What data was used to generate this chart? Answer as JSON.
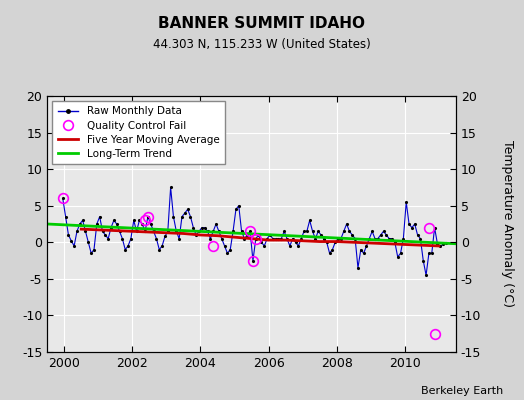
{
  "title": "BANNER SUMMIT IDAHO",
  "subtitle": "44.303 N, 115.233 W (United States)",
  "ylabel": "Temperature Anomaly (°C)",
  "credit": "Berkeley Earth",
  "xlim": [
    1999.5,
    2011.5
  ],
  "ylim": [
    -15,
    20
  ],
  "yticks": [
    -15,
    -10,
    -5,
    0,
    5,
    10,
    15,
    20
  ],
  "xticks": [
    2000,
    2002,
    2004,
    2006,
    2008,
    2010
  ],
  "fig_bg": "#d4d4d4",
  "plot_bg": "#e8e8e8",
  "raw_color": "#0000cc",
  "moving_avg_color": "#cc0000",
  "trend_color": "#00cc00",
  "qc_color": "#ff00ff",
  "raw_data_x": [
    1999.958,
    2000.042,
    2000.125,
    2000.208,
    2000.292,
    2000.375,
    2000.458,
    2000.542,
    2000.625,
    2000.708,
    2000.792,
    2000.875,
    2000.958,
    2001.042,
    2001.125,
    2001.208,
    2001.292,
    2001.375,
    2001.458,
    2001.542,
    2001.625,
    2001.708,
    2001.792,
    2001.875,
    2001.958,
    2002.042,
    2002.125,
    2002.208,
    2002.292,
    2002.375,
    2002.458,
    2002.542,
    2002.625,
    2002.708,
    2002.792,
    2002.875,
    2002.958,
    2003.042,
    2003.125,
    2003.208,
    2003.292,
    2003.375,
    2003.458,
    2003.542,
    2003.625,
    2003.708,
    2003.792,
    2003.875,
    2003.958,
    2004.042,
    2004.125,
    2004.208,
    2004.292,
    2004.375,
    2004.458,
    2004.542,
    2004.625,
    2004.708,
    2004.792,
    2004.875,
    2004.958,
    2005.042,
    2005.125,
    2005.208,
    2005.292,
    2005.375,
    2005.458,
    2005.542,
    2005.625,
    2005.708,
    2005.792,
    2005.875,
    2005.958,
    2006.042,
    2006.125,
    2006.208,
    2006.292,
    2006.375,
    2006.458,
    2006.542,
    2006.625,
    2006.708,
    2006.792,
    2006.875,
    2006.958,
    2007.042,
    2007.125,
    2007.208,
    2007.292,
    2007.375,
    2007.458,
    2007.542,
    2007.625,
    2007.708,
    2007.792,
    2007.875,
    2007.958,
    2008.042,
    2008.125,
    2008.208,
    2008.292,
    2008.375,
    2008.458,
    2008.542,
    2008.625,
    2008.708,
    2008.792,
    2008.875,
    2008.958,
    2009.042,
    2009.125,
    2009.208,
    2009.292,
    2009.375,
    2009.458,
    2009.542,
    2009.625,
    2009.708,
    2009.792,
    2009.875,
    2009.958,
    2010.042,
    2010.125,
    2010.208,
    2010.292,
    2010.375,
    2010.458,
    2010.542,
    2010.625,
    2010.708,
    2010.792,
    2010.875,
    2010.958,
    2011.042,
    2011.125,
    2011.208
  ],
  "raw_data_y": [
    6.0,
    3.5,
    1.0,
    0.2,
    -0.5,
    1.5,
    2.5,
    3.0,
    1.5,
    0.0,
    -1.5,
    -1.0,
    2.5,
    3.5,
    1.5,
    1.0,
    0.5,
    2.0,
    3.0,
    2.5,
    1.5,
    0.5,
    -1.0,
    -0.5,
    0.5,
    3.0,
    1.5,
    3.0,
    2.5,
    1.5,
    3.5,
    2.5,
    1.5,
    0.5,
    -1.0,
    -0.5,
    0.8,
    1.5,
    7.5,
    3.5,
    1.5,
    0.5,
    3.5,
    4.0,
    4.5,
    3.5,
    2.0,
    1.0,
    1.5,
    2.0,
    2.0,
    1.5,
    0.5,
    1.5,
    2.5,
    1.5,
    0.5,
    -0.5,
    -1.5,
    -1.0,
    1.5,
    4.5,
    5.0,
    1.5,
    0.5,
    1.0,
    1.5,
    -2.5,
    0.5,
    1.0,
    0.0,
    -0.5,
    0.5,
    1.0,
    0.5,
    0.5,
    0.5,
    0.5,
    1.5,
    0.5,
    -0.5,
    0.5,
    0.0,
    -0.5,
    0.5,
    1.5,
    1.5,
    3.0,
    1.5,
    0.5,
    1.5,
    1.0,
    0.5,
    0.0,
    -1.5,
    -1.0,
    0.0,
    0.5,
    0.5,
    1.5,
    2.5,
    1.5,
    1.0,
    0.5,
    -3.5,
    -1.0,
    -1.5,
    -0.5,
    0.5,
    1.5,
    0.5,
    0.5,
    1.0,
    1.5,
    1.0,
    0.5,
    0.5,
    0.0,
    -2.0,
    -1.5,
    0.5,
    5.5,
    2.5,
    2.0,
    2.5,
    1.0,
    0.5,
    -2.5,
    -4.5,
    -1.5,
    -1.5,
    2.0,
    -0.2,
    -0.5,
    -0.3,
    -0.1
  ],
  "qc_fail_x": [
    1999.958,
    2002.375,
    2002.458,
    2004.375,
    2005.458,
    2005.542,
    2005.625,
    2010.708,
    2010.875
  ],
  "qc_fail_y": [
    6.0,
    3.0,
    3.5,
    -0.5,
    1.5,
    -2.5,
    0.5,
    2.0,
    -12.5
  ],
  "moving_avg_x": [
    2000.5,
    2001.0,
    2001.5,
    2002.0,
    2002.5,
    2003.0,
    2003.5,
    2004.0,
    2004.5,
    2005.0,
    2005.5,
    2006.0,
    2006.5,
    2007.0,
    2007.5,
    2008.0,
    2008.5,
    2009.0,
    2009.5,
    2010.0,
    2010.5,
    2011.0
  ],
  "moving_avg_y": [
    1.8,
    1.7,
    1.6,
    1.5,
    1.4,
    1.3,
    1.2,
    1.0,
    0.9,
    0.7,
    0.5,
    0.3,
    0.3,
    0.2,
    0.1,
    0.1,
    0.0,
    -0.1,
    -0.2,
    -0.3,
    -0.4,
    -0.5
  ],
  "trend_x": [
    1999.5,
    2011.5
  ],
  "trend_y": [
    2.5,
    -0.2
  ]
}
